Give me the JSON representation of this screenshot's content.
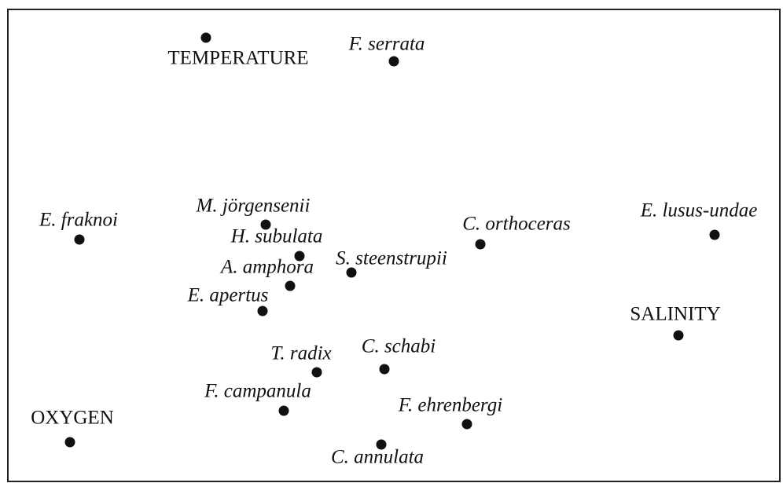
{
  "nodes": [
    {
      "label": "TEMPERATURE",
      "kind": "variable"
    },
    {
      "label": "F. serrata",
      "kind": "species"
    },
    {
      "label": "E. fraknoi",
      "kind": "species"
    },
    {
      "label": "M. jörgensenii",
      "kind": "species"
    },
    {
      "label": "H. subulata",
      "kind": "species"
    },
    {
      "label": "A. amphora",
      "kind": "species"
    },
    {
      "label": "S. steenstrupii",
      "kind": "species"
    },
    {
      "label": "E. apertus",
      "kind": "species"
    },
    {
      "label": "C. orthoceras",
      "kind": "species"
    },
    {
      "label": "E. lusus-undae",
      "kind": "species"
    },
    {
      "label": "SALINITY",
      "kind": "variable"
    },
    {
      "label": "T. radix",
      "kind": "species"
    },
    {
      "label": "C. schabi",
      "kind": "species"
    },
    {
      "label": "F. campanula",
      "kind": "species"
    },
    {
      "label": "F. ehrenbergi",
      "kind": "species"
    },
    {
      "label": "OXYGEN",
      "kind": "variable"
    },
    {
      "label": "C. annulata",
      "kind": "species"
    }
  ]
}
